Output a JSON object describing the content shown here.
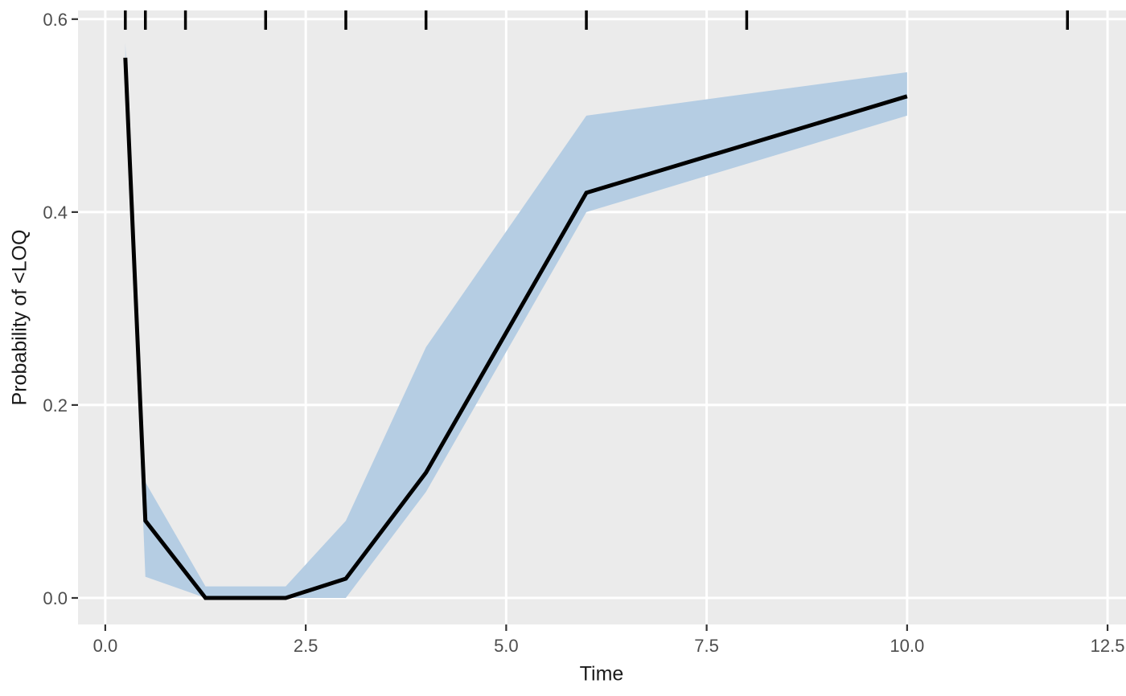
{
  "chart_data": {
    "type": "line",
    "title": "",
    "xlabel": "Time",
    "ylabel": "Probability of <LOQ",
    "xlim": [
      -0.34,
      12.73
    ],
    "ylim": [
      -0.0275,
      0.609
    ],
    "x_ticks": {
      "values": [
        0,
        2.5,
        5,
        7.5,
        10,
        12.5
      ],
      "labels": [
        "0.0",
        "2.5",
        "5.0",
        "7.5",
        "10.0",
        "12.5"
      ]
    },
    "y_ticks": {
      "values": [
        0,
        0.2,
        0.4,
        0.6
      ],
      "labels": [
        "0.0",
        "0.2",
        "0.4",
        "0.6"
      ]
    },
    "grid": "major-only-white-on-gray",
    "legend": "none",
    "series": [
      {
        "name": "probability-of-blq-line",
        "type": "line",
        "x": [
          0.25,
          0.5,
          1.25,
          2.25,
          3,
          4,
          6,
          10
        ],
        "y": [
          0.56,
          0.08,
          0.0,
          0.0,
          0.02,
          0.13,
          0.42,
          0.52
        ]
      }
    ],
    "ribbon": {
      "name": "confidence-band",
      "x": [
        0.25,
        0.5,
        1.25,
        2.25,
        3,
        4,
        6,
        10
      ],
      "upper": [
        0.575,
        0.12,
        0.012,
        0.012,
        0.08,
        0.26,
        0.5,
        0.545
      ],
      "lower": [
        0.545,
        0.022,
        0.0,
        0.0,
        0.0,
        0.11,
        0.4,
        0.5
      ]
    },
    "rug_top": {
      "name": "observed-time-rug",
      "values": [
        0.25,
        0.5,
        1,
        2,
        3,
        4,
        6,
        8,
        12
      ]
    }
  },
  "colors": {
    "outer_bg": "#FFFFFF",
    "panel_bg": "#EBEBEB",
    "grid": "#FFFFFF",
    "ribbon": "#B5CDE3",
    "line": "#000000",
    "rug": "#000000",
    "tick": "#333333",
    "tick_label": "#4D4D4D",
    "axis_title": "#1A1A1A"
  },
  "layout_hints": {
    "grid_visible": true,
    "legend_position": "none"
  }
}
